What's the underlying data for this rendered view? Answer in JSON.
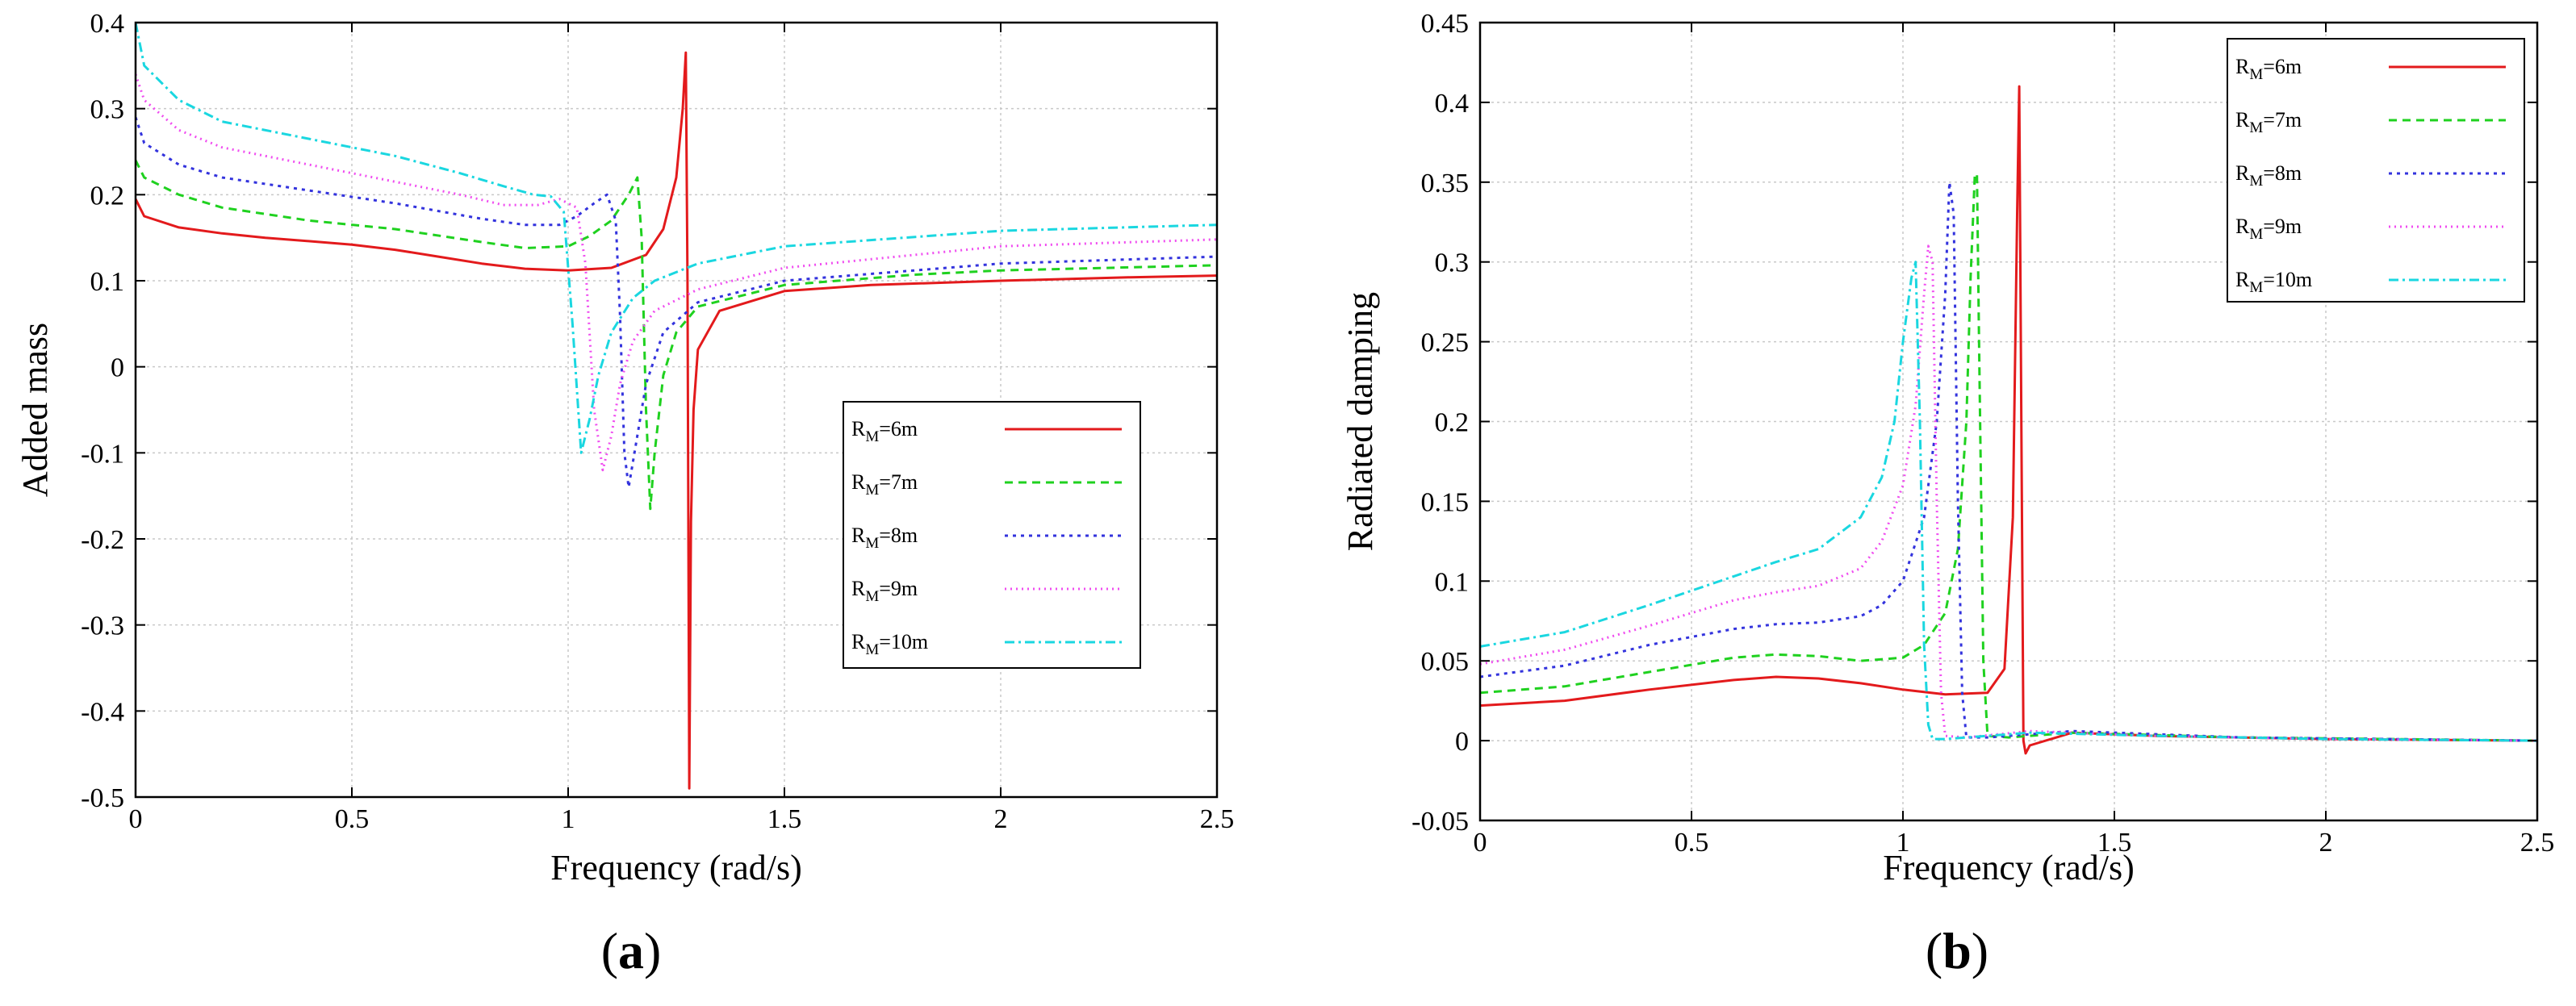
{
  "chart_data": [
    {
      "type": "line",
      "panel_label": "a",
      "title": "",
      "xlabel": "Frequency (rad/s)",
      "ylabel": "Added mass",
      "xlim": [
        0,
        2.5
      ],
      "ylim": [
        -0.5,
        0.4
      ],
      "x_ticks": [
        0,
        0.5,
        1,
        1.5,
        2,
        2.5
      ],
      "x_tick_labels": [
        "0",
        "0.5",
        "1",
        "1.5",
        "2",
        "2.5"
      ],
      "y_ticks": [
        -0.5,
        -0.4,
        -0.3,
        -0.2,
        -0.1,
        0,
        0.1,
        0.2,
        0.3,
        0.4
      ],
      "y_tick_labels": [
        "-0.5",
        "-0.4",
        "-0.3",
        "-0.2",
        "-0.1",
        "0",
        "0.1",
        "0.2",
        "0.3",
        "0.4"
      ],
      "grid": true,
      "legend_position": "right-middle",
      "series": [
        {
          "name": "R_M=6m",
          "label_main": "R",
          "label_sub": "M",
          "label_rest": "=6m",
          "color": "#e31a1c",
          "dash": "solid",
          "x": [
            0,
            0.02,
            0.1,
            0.2,
            0.3,
            0.4,
            0.5,
            0.6,
            0.7,
            0.8,
            0.9,
            1.0,
            1.1,
            1.18,
            1.22,
            1.25,
            1.265,
            1.272,
            1.276,
            1.28,
            1.284,
            1.29,
            1.3,
            1.35,
            1.5,
            1.7,
            2.0,
            2.3,
            2.5
          ],
          "y": [
            0.195,
            0.175,
            0.162,
            0.155,
            0.15,
            0.146,
            0.142,
            0.136,
            0.128,
            0.12,
            0.114,
            0.112,
            0.115,
            0.13,
            0.16,
            0.22,
            0.3,
            0.365,
            0.1,
            -0.49,
            -0.18,
            -0.05,
            0.02,
            0.065,
            0.088,
            0.095,
            0.1,
            0.104,
            0.106
          ]
        },
        {
          "name": "R_M=7m",
          "label_main": "R",
          "label_sub": "M",
          "label_rest": "=7m",
          "color": "#1fd11f",
          "dash": "10,7",
          "x": [
            0,
            0.02,
            0.1,
            0.2,
            0.4,
            0.6,
            0.8,
            0.9,
            1.0,
            1.05,
            1.1,
            1.14,
            1.16,
            1.17,
            1.18,
            1.19,
            1.2,
            1.22,
            1.25,
            1.3,
            1.5,
            1.8,
            2.0,
            2.5
          ],
          "y": [
            0.24,
            0.22,
            0.2,
            0.185,
            0.17,
            0.16,
            0.145,
            0.138,
            0.14,
            0.152,
            0.17,
            0.2,
            0.22,
            0.15,
            -0.05,
            -0.165,
            -0.1,
            -0.01,
            0.04,
            0.07,
            0.095,
            0.107,
            0.112,
            0.118
          ]
        },
        {
          "name": "R_M=8m",
          "label_main": "R",
          "label_sub": "M",
          "label_rest": "=8m",
          "color": "#3333dd",
          "dash": "4,6",
          "x": [
            0,
            0.02,
            0.1,
            0.2,
            0.4,
            0.6,
            0.8,
            0.9,
            0.98,
            1.02,
            1.06,
            1.09,
            1.11,
            1.12,
            1.13,
            1.14,
            1.15,
            1.18,
            1.22,
            1.3,
            1.5,
            2.0,
            2.5
          ],
          "y": [
            0.29,
            0.26,
            0.235,
            0.22,
            0.205,
            0.19,
            0.172,
            0.165,
            0.165,
            0.175,
            0.19,
            0.2,
            0.17,
            0.06,
            -0.1,
            -0.14,
            -0.11,
            -0.02,
            0.04,
            0.075,
            0.1,
            0.12,
            0.128
          ]
        },
        {
          "name": "R_M=9m",
          "label_main": "R",
          "label_sub": "M",
          "label_rest": "=9m",
          "color": "#f04df0",
          "dash": "2,5",
          "x": [
            0,
            0.02,
            0.1,
            0.2,
            0.4,
            0.6,
            0.75,
            0.85,
            0.93,
            0.98,
            1.02,
            1.04,
            1.06,
            1.08,
            1.1,
            1.12,
            1.15,
            1.2,
            1.3,
            1.5,
            2.0,
            2.5
          ],
          "y": [
            0.34,
            0.31,
            0.275,
            0.255,
            0.235,
            0.215,
            0.2,
            0.188,
            0.188,
            0.195,
            0.185,
            0.12,
            -0.05,
            -0.12,
            -0.08,
            -0.02,
            0.03,
            0.065,
            0.09,
            0.115,
            0.14,
            0.148
          ]
        },
        {
          "name": "R_M=10m",
          "label_main": "R",
          "label_sub": "M",
          "label_rest": "=10m",
          "color": "#1ad7e0",
          "dash": "12,5,3,5",
          "x": [
            0,
            0.02,
            0.1,
            0.2,
            0.4,
            0.6,
            0.75,
            0.85,
            0.92,
            0.96,
            0.99,
            1.01,
            1.03,
            1.05,
            1.07,
            1.1,
            1.15,
            1.2,
            1.3,
            1.5,
            2.0,
            2.5
          ],
          "y": [
            0.4,
            0.35,
            0.31,
            0.285,
            0.265,
            0.245,
            0.225,
            0.21,
            0.2,
            0.198,
            0.18,
            0.05,
            -0.1,
            -0.06,
            -0.01,
            0.04,
            0.08,
            0.1,
            0.12,
            0.14,
            0.158,
            0.165
          ]
        }
      ]
    },
    {
      "type": "line",
      "panel_label": "b",
      "title": "",
      "xlabel": "Frequency (rad/s)",
      "ylabel": "Radiated damping",
      "xlim": [
        0,
        2.5
      ],
      "ylim": [
        -0.05,
        0.45
      ],
      "x_ticks": [
        0,
        0.5,
        1,
        1.5,
        2,
        2.5
      ],
      "x_tick_labels": [
        "0",
        "0.5",
        "1",
        "1.5",
        "2",
        "2.5"
      ],
      "y_ticks": [
        -0.05,
        0,
        0.05,
        0.1,
        0.15,
        0.2,
        0.25,
        0.3,
        0.35,
        0.4,
        0.45
      ],
      "y_tick_labels": [
        "-0.05",
        "0",
        "0.05",
        "0.1",
        "0.15",
        "0.2",
        "0.25",
        "0.3",
        "0.35",
        "0.4",
        "0.45"
      ],
      "grid": true,
      "legend_position": "top-right",
      "series": [
        {
          "name": "R_M=6m",
          "label_main": "R",
          "label_sub": "M",
          "label_rest": "=6m",
          "color": "#e31a1c",
          "dash": "solid",
          "x": [
            0,
            0.2,
            0.4,
            0.6,
            0.7,
            0.8,
            0.9,
            1.0,
            1.1,
            1.2,
            1.24,
            1.26,
            1.27,
            1.275,
            1.28,
            1.285,
            1.29,
            1.3,
            1.4,
            1.6,
            2.0,
            2.5
          ],
          "y": [
            0.022,
            0.025,
            0.032,
            0.038,
            0.04,
            0.039,
            0.036,
            0.032,
            0.029,
            0.03,
            0.045,
            0.14,
            0.33,
            0.41,
            0.2,
            0.0,
            -0.008,
            -0.003,
            0.005,
            0.003,
            0.001,
            0.0
          ]
        },
        {
          "name": "R_M=7m",
          "label_main": "R",
          "label_sub": "M",
          "label_rest": "=7m",
          "color": "#1fd11f",
          "dash": "10,7",
          "x": [
            0,
            0.2,
            0.4,
            0.6,
            0.7,
            0.8,
            0.9,
            1.0,
            1.05,
            1.1,
            1.13,
            1.15,
            1.16,
            1.17,
            1.175,
            1.18,
            1.19,
            1.2,
            1.25,
            1.4,
            1.8,
            2.5
          ],
          "y": [
            0.03,
            0.034,
            0.043,
            0.052,
            0.054,
            0.053,
            0.05,
            0.052,
            0.06,
            0.08,
            0.12,
            0.2,
            0.29,
            0.355,
            0.355,
            0.25,
            0.05,
            0.003,
            0.002,
            0.005,
            0.002,
            0.0
          ]
        },
        {
          "name": "R_M=8m",
          "label_main": "R",
          "label_sub": "M",
          "label_rest": "=8m",
          "color": "#3333dd",
          "dash": "4,6",
          "x": [
            0,
            0.2,
            0.4,
            0.6,
            0.7,
            0.8,
            0.9,
            0.95,
            1.0,
            1.05,
            1.08,
            1.1,
            1.11,
            1.12,
            1.13,
            1.14,
            1.15,
            1.2,
            1.4,
            1.8,
            2.5
          ],
          "y": [
            0.04,
            0.047,
            0.06,
            0.07,
            0.073,
            0.074,
            0.078,
            0.085,
            0.1,
            0.14,
            0.2,
            0.28,
            0.35,
            0.33,
            0.15,
            0.03,
            0.002,
            0.002,
            0.006,
            0.002,
            0.0
          ]
        },
        {
          "name": "R_M=9m",
          "label_main": "R",
          "label_sub": "M",
          "label_rest": "=9m",
          "color": "#f04df0",
          "dash": "2,5",
          "x": [
            0,
            0.2,
            0.4,
            0.6,
            0.7,
            0.8,
            0.9,
            0.95,
            1.0,
            1.03,
            1.05,
            1.06,
            1.07,
            1.08,
            1.09,
            1.1,
            1.15,
            1.3,
            1.6,
            2.0,
            2.5
          ],
          "y": [
            0.048,
            0.057,
            0.072,
            0.088,
            0.093,
            0.097,
            0.108,
            0.125,
            0.16,
            0.21,
            0.28,
            0.31,
            0.3,
            0.15,
            0.03,
            0.003,
            0.002,
            0.006,
            0.003,
            0.001,
            0.0
          ]
        },
        {
          "name": "R_M=10m",
          "label_main": "R",
          "label_sub": "M",
          "label_rest": "=10m",
          "color": "#1ad7e0",
          "dash": "12,5,3,5",
          "x": [
            0,
            0.2,
            0.4,
            0.6,
            0.7,
            0.8,
            0.9,
            0.95,
            0.98,
            1.0,
            1.02,
            1.03,
            1.04,
            1.05,
            1.06,
            1.07,
            1.1,
            1.3,
            1.6,
            2.0,
            2.5
          ],
          "y": [
            0.059,
            0.068,
            0.085,
            0.103,
            0.112,
            0.12,
            0.14,
            0.165,
            0.2,
            0.25,
            0.29,
            0.3,
            0.2,
            0.06,
            0.01,
            0.001,
            0.001,
            0.005,
            0.003,
            0.001,
            0.0
          ]
        }
      ]
    }
  ]
}
